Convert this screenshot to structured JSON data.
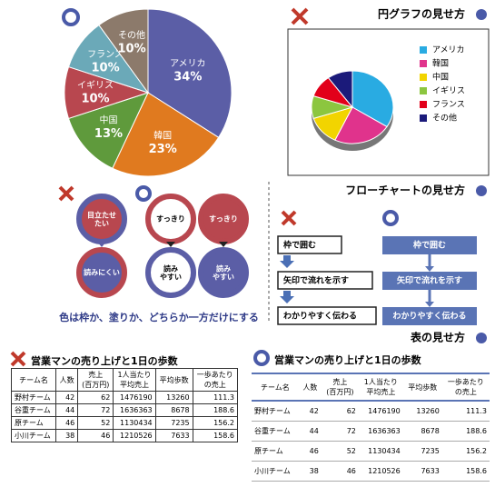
{
  "pie_section": {
    "title": "円グラフの見せ方",
    "good_pie": {
      "labels": [
        "アメリカ",
        "韓国",
        "中国",
        "イギリス",
        "フランス",
        "その他"
      ],
      "values": [
        34,
        23,
        13,
        10,
        10,
        10
      ],
      "value_labels": [
        "34%",
        "23%",
        "13%",
        "10%",
        "10%",
        "10%"
      ],
      "colors": [
        "#5b5ea6",
        "#e07a1f",
        "#5f9a3c",
        "#b8474f",
        "#6ba9b8",
        "#8c7a6b"
      ]
    },
    "bad_pie": {
      "labels": [
        "アメリカ",
        "韓国",
        "中国",
        "イギリス",
        "フランス",
        "その他"
      ],
      "values": [
        34,
        23,
        13,
        10,
        10,
        10
      ],
      "colors": [
        "#29abe2",
        "#e0338c",
        "#f2d400",
        "#8cc63f",
        "#e2001a",
        "#1b1a7a"
      ]
    }
  },
  "flow_section": {
    "title": "フローチャートの見せ方",
    "circles": {
      "bad": [
        "目立たせ\nたい",
        "読みにくい"
      ],
      "good_outline": [
        "すっきり",
        "読み\nやすい"
      ],
      "good_fill": [
        "すっきり",
        "読み\nやすい"
      ],
      "caption": "色は枠か、塗りか、どちらか一方だけにする"
    },
    "boxes": {
      "bad": [
        "枠で囲む",
        "矢印で流れを示す",
        "わかりやすく伝わる"
      ],
      "good": [
        "枠で囲む",
        "矢印で流れを示す",
        "わかりやすく伝わる"
      ]
    }
  },
  "table_section": {
    "title": "表の見せ方",
    "table": {
      "title": "営業マンの売り上げと1日の歩数",
      "header": [
        "チーム名",
        "人数",
        "売上\n(百万円)",
        "1人当たり\n平均売上",
        "平均歩数",
        "一歩あたり\nの売上"
      ],
      "rows": [
        [
          "野村チーム",
          42,
          62,
          1476190,
          13260,
          111.3
        ],
        [
          "谷重チーム",
          44,
          72,
          1636363,
          8678,
          188.6
        ],
        [
          "原チーム",
          46,
          52,
          1130434,
          7235,
          156.2
        ],
        [
          "小川チーム",
          38,
          46,
          1210526,
          7633,
          158.6
        ]
      ]
    }
  }
}
